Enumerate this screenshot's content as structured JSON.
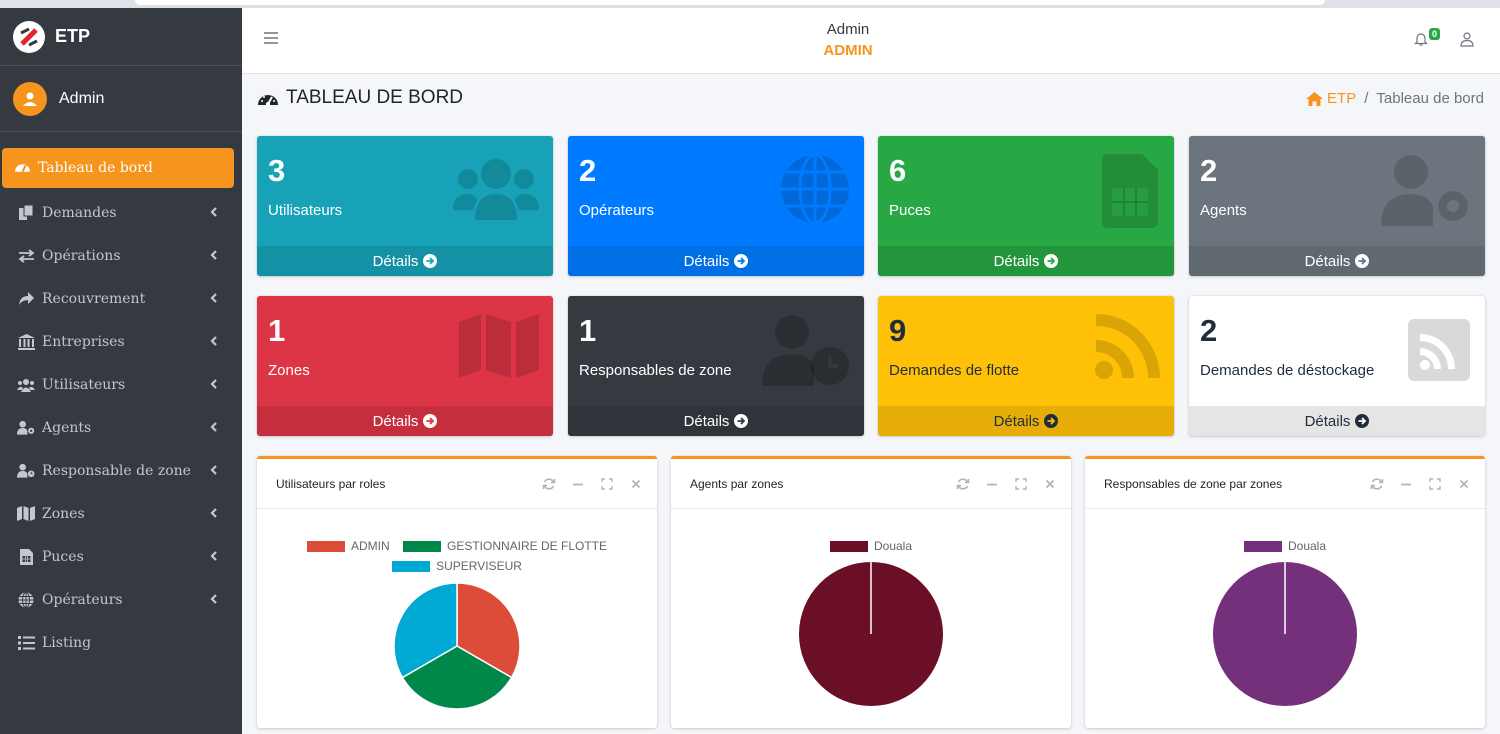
{
  "brand": {
    "name": "ETP"
  },
  "user": {
    "name": "Admin"
  },
  "sidebar": {
    "items": [
      {
        "label": "Tableau de bord",
        "icon": "tachometer-icon",
        "active": true
      },
      {
        "label": "Demandes",
        "icon": "copy-icon"
      },
      {
        "label": "Opérations",
        "icon": "exchange-icon"
      },
      {
        "label": "Recouvrement",
        "icon": "share-icon"
      },
      {
        "label": "Entreprises",
        "icon": "bank-icon"
      },
      {
        "label": "Utilisateurs",
        "icon": "users-icon"
      },
      {
        "label": "Agents",
        "icon": "user-cog-icon"
      },
      {
        "label": "Responsable de zone",
        "icon": "user-clock-icon"
      },
      {
        "label": "Zones",
        "icon": "map-icon"
      },
      {
        "label": "Puces",
        "icon": "sim-icon"
      },
      {
        "label": "Opérateurs",
        "icon": "globe-icon"
      },
      {
        "label": "Listing",
        "icon": "list-icon"
      }
    ]
  },
  "header": {
    "role_label": "Admin",
    "role": "ADMIN",
    "notifications": "0"
  },
  "page": {
    "title": "TABLEAU DE BORD",
    "breadcrumb_home": "ETP",
    "breadcrumb_current": "Tableau de bord"
  },
  "boxes": [
    {
      "value": "3",
      "label": "Utilisateurs",
      "details": "Détails",
      "color": "#17a2b8",
      "icon": "users-icon"
    },
    {
      "value": "2",
      "label": "Opérateurs",
      "details": "Détails",
      "color": "#007bff",
      "icon": "globe-icon"
    },
    {
      "value": "6",
      "label": "Puces",
      "details": "Détails",
      "color": "#28a745",
      "icon": "sim-icon"
    },
    {
      "value": "2",
      "label": "Agents",
      "details": "Détails",
      "color": "#6c757d",
      "icon": "user-cog-icon"
    },
    {
      "value": "1",
      "label": "Zones",
      "details": "Détails",
      "color": "#dc3545",
      "icon": "map-icon"
    },
    {
      "value": "1",
      "label": "Responsables de zone",
      "details": "Détails",
      "color": "#343a40",
      "icon": "user-clock-icon"
    },
    {
      "value": "9",
      "label": "Demandes de flotte",
      "details": "Détails",
      "color": "#ffc107",
      "icon": "rss-icon"
    },
    {
      "value": "2",
      "label": "Demandes de déstockage",
      "details": "Détails",
      "color": "#ffffff",
      "icon": "rss-square-icon"
    }
  ],
  "cards": [
    {
      "title": "Utilisateurs par roles"
    },
    {
      "title": "Agents par zones"
    },
    {
      "title": "Responsables de zone par zones"
    }
  ],
  "chart_data": [
    {
      "type": "pie",
      "title": "",
      "categories": [
        "ADMIN",
        "GESTIONNAIRE DE FLOTTE",
        "SUPERVISEUR"
      ],
      "values": [
        1,
        1,
        1
      ],
      "colors": [
        "#dd4b39",
        "#00874a",
        "#00a9d4"
      ]
    },
    {
      "type": "pie",
      "title": "",
      "categories": [
        "Douala"
      ],
      "values": [
        2
      ],
      "colors": [
        "#6a0f26"
      ]
    },
    {
      "type": "pie",
      "title": "",
      "categories": [
        "Douala"
      ],
      "values": [
        1
      ],
      "colors": [
        "#74307a"
      ]
    }
  ]
}
